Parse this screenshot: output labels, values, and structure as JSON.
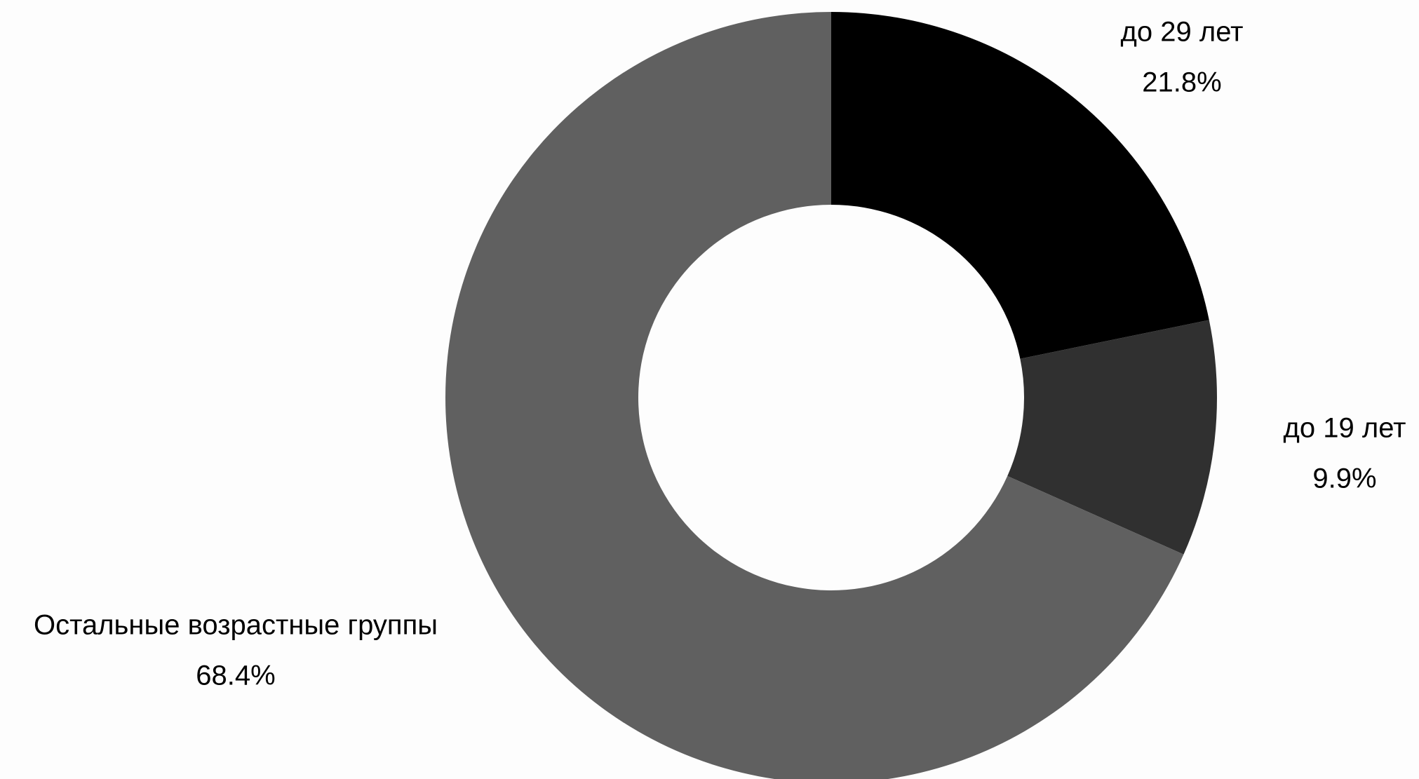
{
  "chart_data": {
    "type": "pie",
    "variant": "donut",
    "start_angle_deg": 0,
    "direction": "clockwise",
    "legend": "none",
    "slices": [
      {
        "label": "до 29 лет",
        "value": 21.8,
        "value_label": "21.8%",
        "color": "#000000"
      },
      {
        "label": "до 19 лет",
        "value": 9.9,
        "value_label": "9.9%",
        "color": "#303030"
      },
      {
        "label": "Остальные возрастные группы",
        "value": 68.4,
        "value_label": "68.4%",
        "color": "#606060"
      }
    ]
  }
}
